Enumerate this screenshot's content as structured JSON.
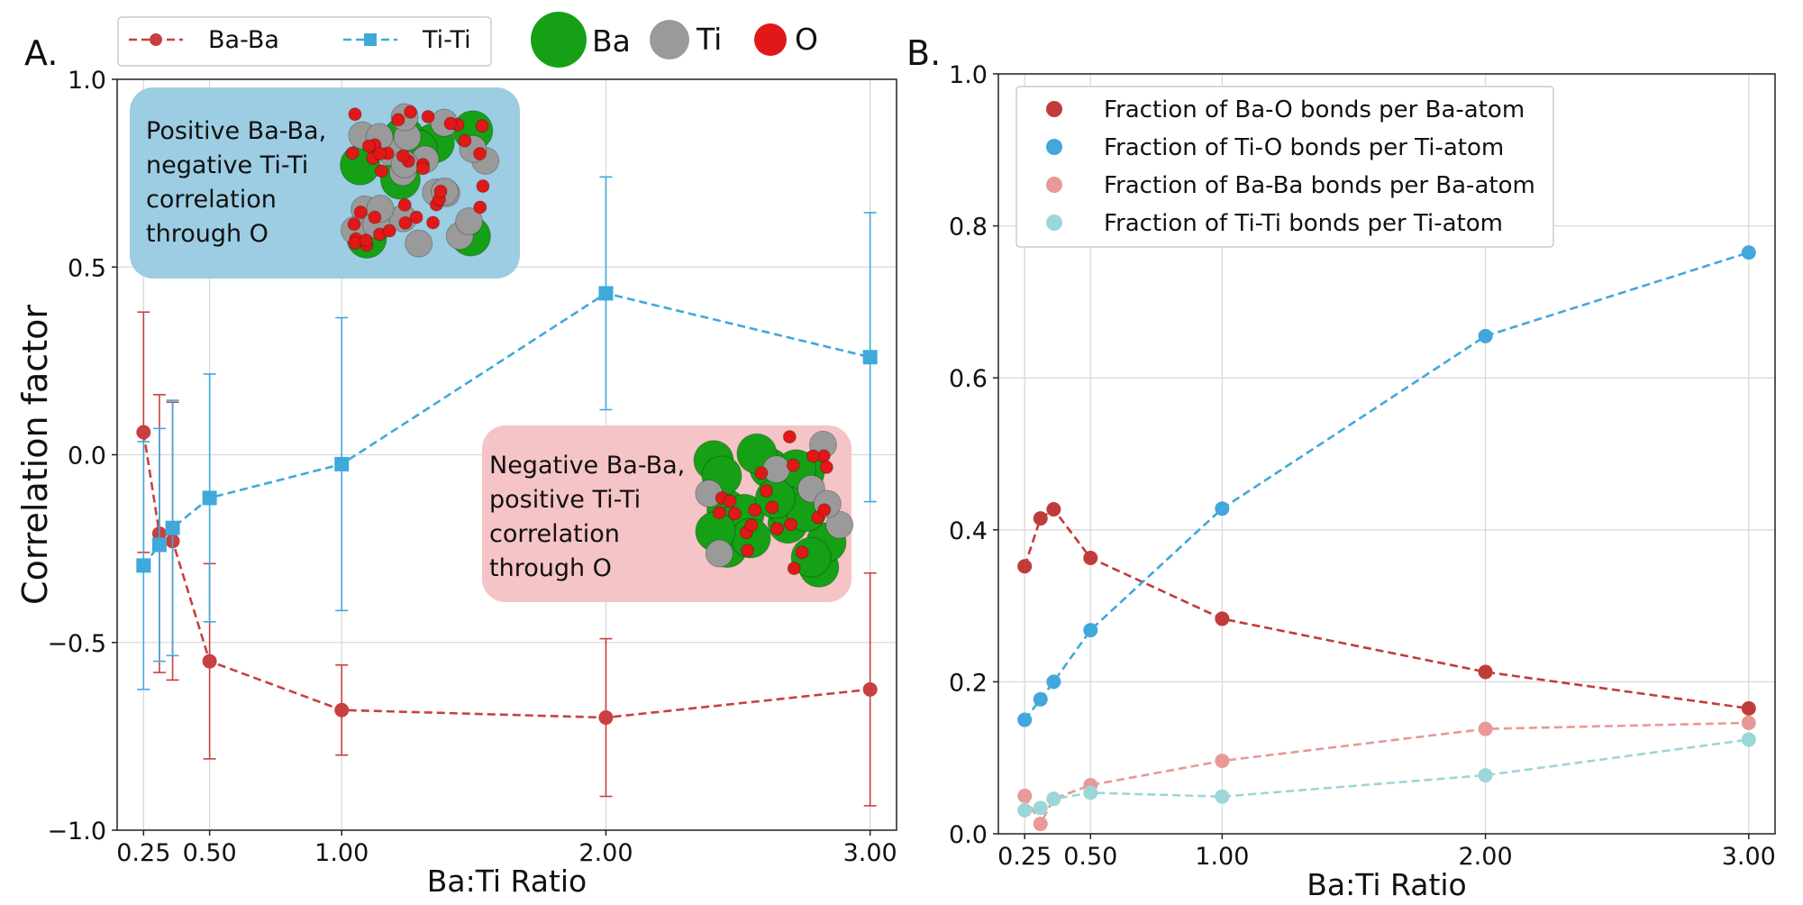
{
  "panel_a": {
    "label": "A.",
    "legend": {
      "series1": "Ba-Ba",
      "series2": "Ti-Ti",
      "atom_ba": "Ba",
      "atom_ti": "Ti",
      "atom_o": "O"
    },
    "box_blue": [
      "Positive Ba-Ba,",
      "negative Ti-Ti",
      "correlation",
      "through O"
    ],
    "box_red": [
      "Negative Ba-Ba,",
      "positive Ti-Ti",
      "correlation",
      "through O"
    ]
  },
  "panel_b": {
    "label": "B."
  },
  "colors": {
    "baba": "#c8403f",
    "titi": "#3fa9dc",
    "bao": "#c23b3b",
    "tio": "#41a7dc",
    "baba_b": "#e99898",
    "titi_b": "#9bd6d8",
    "box_blue": "#9ccde2",
    "box_red": "#f5c4c6",
    "ba_atom": "#16a016",
    "ti_atom": "#9a9a9a",
    "o_atom": "#e01818"
  },
  "chart_data": [
    {
      "type": "line",
      "title": "",
      "xlabel": "Ba:Ti Ratio",
      "ylabel": "Correlation factor",
      "xlim": [
        0.15,
        3.1
      ],
      "ylim": [
        -1.0,
        1.0
      ],
      "xticks": [
        0.25,
        0.5,
        1.0,
        2.0,
        3.0
      ],
      "xtick_labels": [
        "0.25",
        "0.50",
        "1.00",
        "2.00",
        "3.00"
      ],
      "yticks": [
        -1.0,
        -0.5,
        0.0,
        0.5,
        1.0
      ],
      "ytick_labels": [
        "−1.0",
        "−0.5",
        "0.0",
        "0.5",
        "1.0"
      ],
      "grid": true,
      "legend_position": "top, outside axes",
      "series": [
        {
          "name": "Ba-Ba",
          "marker": "circle",
          "x": [
            0.25,
            0.31,
            0.36,
            0.5,
            1.0,
            2.0,
            3.0
          ],
          "y": [
            0.06,
            -0.21,
            -0.23,
            -0.55,
            -0.68,
            -0.7,
            -0.625
          ],
          "err": [
            0.32,
            0.37,
            0.37,
            0.26,
            0.12,
            0.21,
            0.31
          ]
        },
        {
          "name": "Ti-Ti",
          "marker": "square",
          "x": [
            0.25,
            0.31,
            0.36,
            0.5,
            1.0,
            2.0,
            3.0
          ],
          "y": [
            -0.295,
            -0.24,
            -0.195,
            -0.115,
            -0.025,
            0.43,
            0.26
          ],
          "err": [
            0.33,
            0.31,
            0.34,
            0.33,
            0.39,
            0.31,
            0.385
          ]
        }
      ]
    },
    {
      "type": "line",
      "title": "",
      "xlabel": "Ba:Ti Ratio",
      "ylabel": "",
      "xlim": [
        0.15,
        3.1
      ],
      "ylim": [
        0.0,
        1.0
      ],
      "xticks": [
        0.25,
        0.5,
        1.0,
        2.0,
        3.0
      ],
      "xtick_labels": [
        "0.25",
        "0.50",
        "1.00",
        "2.00",
        "3.00"
      ],
      "yticks": [
        0.0,
        0.2,
        0.4,
        0.6,
        0.8,
        1.0
      ],
      "ytick_labels": [
        "0.0",
        "0.2",
        "0.4",
        "0.6",
        "0.8",
        "1.0"
      ],
      "grid": true,
      "legend_position": "upper left",
      "series": [
        {
          "name": "Fraction of Ba-O bonds per Ba-atom",
          "marker": "circle",
          "x": [
            0.25,
            0.31,
            0.36,
            0.5,
            1.0,
            2.0,
            3.0
          ],
          "y": [
            0.352,
            0.415,
            0.427,
            0.363,
            0.283,
            0.213,
            0.165
          ]
        },
        {
          "name": "Fraction of Ti-O bonds per Ti-atom",
          "marker": "circle",
          "x": [
            0.25,
            0.31,
            0.36,
            0.5,
            1.0,
            2.0,
            3.0
          ],
          "y": [
            0.15,
            0.177,
            0.2,
            0.268,
            0.428,
            0.655,
            0.765
          ]
        },
        {
          "name": "Fraction of Ba-Ba bonds per Ba-atom",
          "marker": "circle",
          "x": [
            0.25,
            0.31,
            0.36,
            0.5,
            1.0,
            2.0,
            3.0
          ],
          "y": [
            0.05,
            0.013,
            0.046,
            0.064,
            0.096,
            0.138,
            0.146
          ]
        },
        {
          "name": "Fraction of Ti-Ti bonds per Ti-atom",
          "marker": "circle",
          "x": [
            0.25,
            0.31,
            0.36,
            0.5,
            1.0,
            2.0,
            3.0
          ],
          "y": [
            0.031,
            0.034,
            0.046,
            0.054,
            0.049,
            0.077,
            0.124
          ]
        }
      ]
    }
  ]
}
